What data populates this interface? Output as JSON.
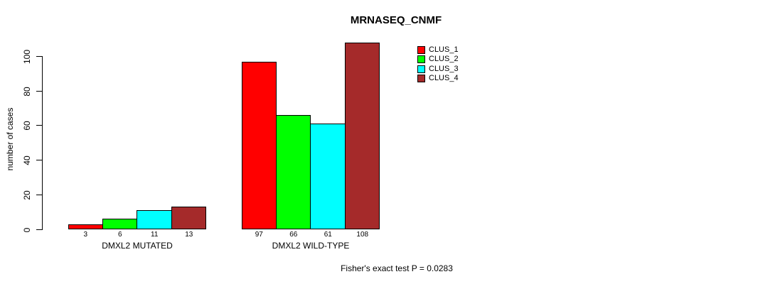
{
  "chart_data": {
    "type": "bar",
    "title": "MRNASEQ_CNMF",
    "ylabel": "number of cases",
    "xlabel": "",
    "annotation": "Fisher's exact test P = 0.0283",
    "categories": [
      "DMXL2 MUTATED",
      "DMXL2 WILD-TYPE"
    ],
    "series": [
      {
        "name": "CLUS_1",
        "color": "#FF0000",
        "values": [
          3,
          97
        ]
      },
      {
        "name": "CLUS_2",
        "color": "#00FF00",
        "values": [
          6,
          66
        ]
      },
      {
        "name": "CLUS_3",
        "color": "#00FFFF",
        "values": [
          11,
          61
        ]
      },
      {
        "name": "CLUS_4",
        "color": "#A52A2A",
        "values": [
          13,
          108
        ]
      }
    ],
    "yticks": [
      0,
      20,
      40,
      60,
      80,
      100
    ],
    "ylim": [
      0,
      110
    ],
    "grid": false,
    "bar_border_color": "#000000",
    "legend_position": "top-right-inside",
    "value_labels_shown": true
  }
}
